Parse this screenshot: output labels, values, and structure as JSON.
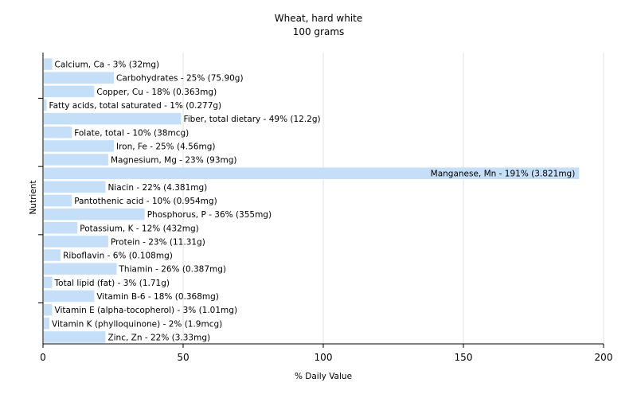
{
  "chart_data": {
    "type": "bar",
    "orientation": "horizontal",
    "title": "Wheat, hard white",
    "subtitle": "100 grams",
    "xlabel": "% Daily Value",
    "ylabel": "Nutrient",
    "xlim": [
      0,
      200
    ],
    "xticks": [
      "0",
      "50",
      "100",
      "150",
      "200"
    ],
    "grid": true,
    "legend": "none",
    "colors": {
      "bar": "#c6dff8",
      "grid": "#e2e2e2",
      "axis": "#000000"
    },
    "categories": [
      "Calcium, Ca",
      "Carbohydrates",
      "Copper, Cu",
      "Fatty acids, total saturated",
      "Fiber, total dietary",
      "Folate, total",
      "Iron, Fe",
      "Magnesium, Mg",
      "Manganese, Mn",
      "Niacin",
      "Pantothenic acid",
      "Phosphorus, P",
      "Potassium, K",
      "Protein",
      "Riboflavin",
      "Thiamin",
      "Total lipid (fat)",
      "Vitamin B-6",
      "Vitamin E (alpha-tocopherol)",
      "Vitamin K (phylloquinone)",
      "Zinc, Zn"
    ],
    "values": [
      3,
      25,
      18,
      1,
      49,
      10,
      25,
      23,
      191,
      22,
      10,
      36,
      12,
      23,
      6,
      26,
      3,
      18,
      3,
      2,
      22
    ],
    "labels": [
      "Calcium, Ca - 3% (32mg)",
      "Carbohydrates - 25% (75.90g)",
      "Copper, Cu - 18% (0.363mg)",
      "Fatty acids, total saturated - 1% (0.277g)",
      "Fiber, total dietary - 49% (12.2g)",
      "Folate, total - 10% (38mcg)",
      "Iron, Fe - 25% (4.56mg)",
      "Magnesium, Mg - 23% (93mg)",
      "Manganese, Mn - 191% (3.821mg)",
      "Niacin - 22% (4.381mg)",
      "Pantothenic acid - 10% (0.954mg)",
      "Phosphorus, P - 36% (355mg)",
      "Potassium, K - 12% (432mg)",
      "Protein - 23% (11.31g)",
      "Riboflavin - 6% (0.108mg)",
      "Thiamin - 26% (0.387mg)",
      "Total lipid (fat) - 3% (1.71g)",
      "Vitamin B-6 - 18% (0.368mg)",
      "Vitamin E (alpha-tocopherol) - 3% (1.01mg)",
      "Vitamin K (phylloquinone) - 2% (1.9mcg)",
      "Zinc, Zn - 22% (3.33mg)"
    ]
  }
}
